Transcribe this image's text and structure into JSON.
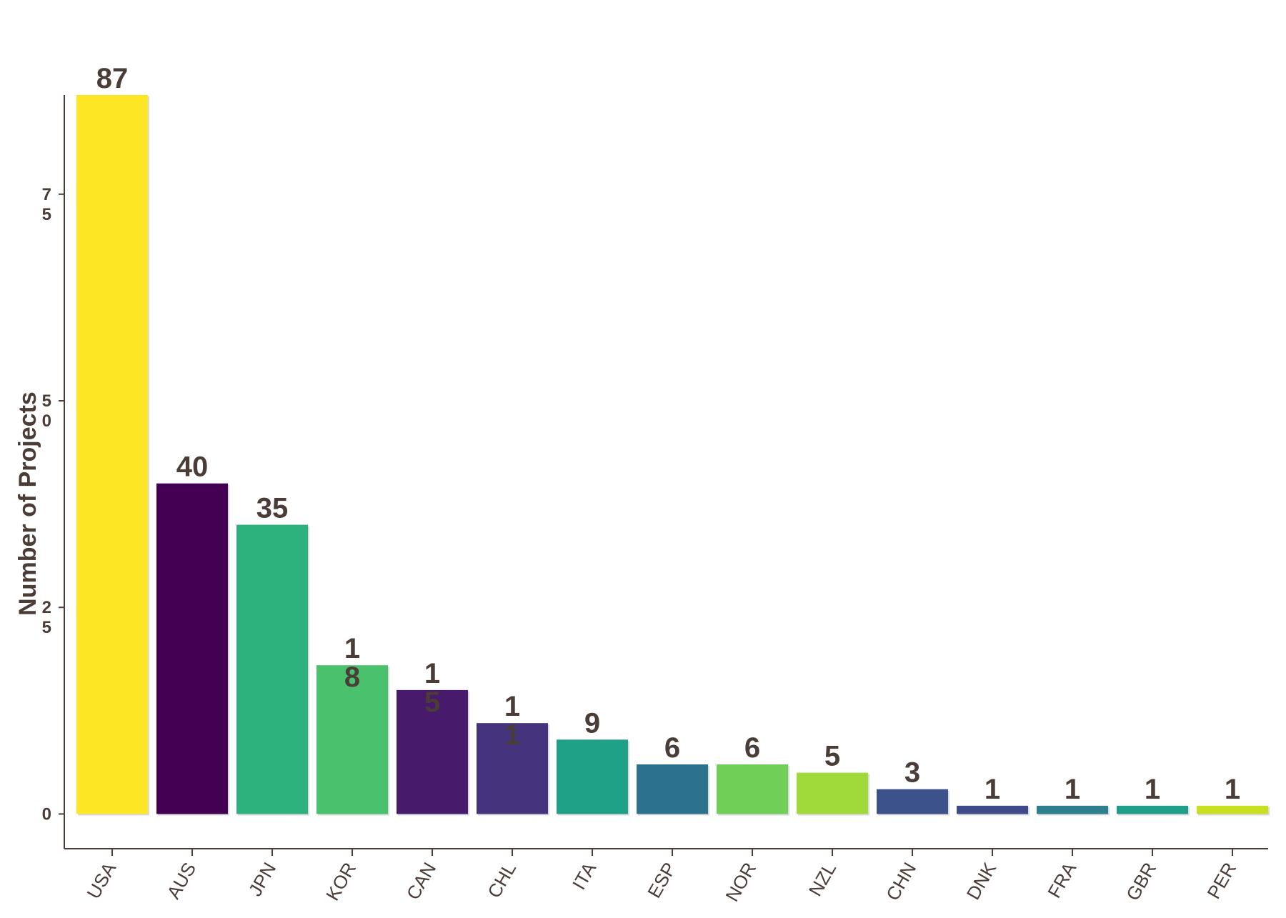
{
  "chart_data": {
    "type": "bar",
    "title": "",
    "xlabel": "",
    "ylabel": "Number of Projects",
    "categories": [
      "USA",
      "AUS",
      "JPN",
      "KOR",
      "CAN",
      "CHL",
      "ITA",
      "ESP",
      "NOR",
      "NZL",
      "CHN",
      "DNK",
      "FRA",
      "GBR",
      "PER"
    ],
    "values": [
      87,
      40,
      35,
      18,
      15,
      11,
      9,
      6,
      6,
      5,
      3,
      1,
      1,
      1,
      1
    ],
    "colors": [
      "#fde725",
      "#440154",
      "#2db27d",
      "#4ac16d",
      "#481a6c",
      "#46337e",
      "#1fa187",
      "#2c728e",
      "#70cf57",
      "#9fda3a",
      "#3b528b",
      "#3e4a89",
      "#2d7f8e",
      "#1f9e89",
      "#c8e020"
    ],
    "yticks": [
      0,
      25,
      50,
      75
    ],
    "ytick_labels": [
      [
        "0"
      ],
      [
        "2",
        "5"
      ],
      [
        "5",
        "0"
      ],
      [
        "7",
        "5"
      ]
    ],
    "data_labels": [
      [
        "87"
      ],
      [
        "40"
      ],
      [
        "35"
      ],
      [
        "1",
        "8"
      ],
      [
        "1",
        "5"
      ],
      [
        "1",
        "1"
      ],
      [
        "9"
      ],
      [
        "6"
      ],
      [
        "6"
      ],
      [
        "5"
      ],
      [
        "3"
      ],
      [
        "1"
      ],
      [
        "1"
      ],
      [
        "1"
      ],
      [
        "1"
      ]
    ],
    "ylim": [
      -4.2,
      87
    ],
    "grid": false,
    "legend": "none"
  }
}
